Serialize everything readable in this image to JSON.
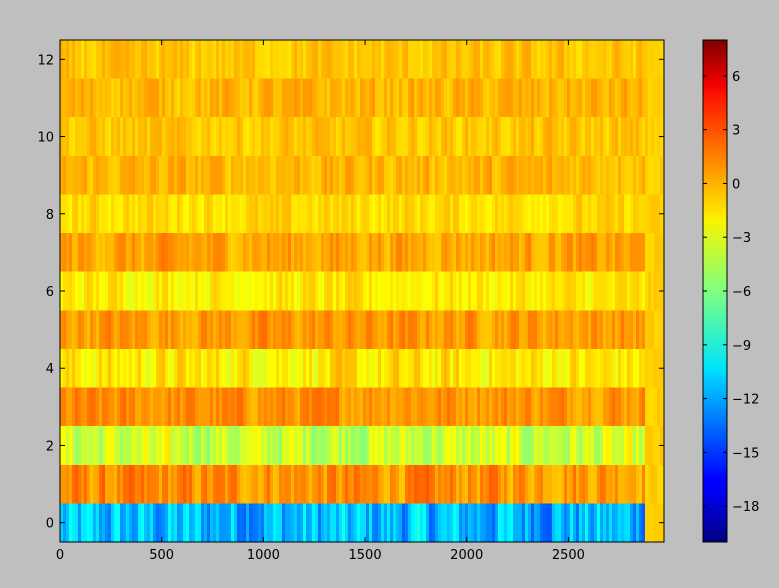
{
  "chart_data": {
    "type": "heatmap",
    "title": "",
    "xlabel": "",
    "ylabel": "",
    "x_range": [
      0,
      2970
    ],
    "y_range": [
      -0.5,
      12.5
    ],
    "colormap": "jet",
    "color_range": [
      -20,
      8
    ],
    "x_ticks": [
      0,
      500,
      1000,
      1500,
      2000,
      2500
    ],
    "y_ticks": [
      0,
      2,
      4,
      6,
      8,
      10,
      12
    ],
    "colorbar_ticks": [
      -18,
      -15,
      -12,
      -9,
      -6,
      -3,
      0,
      3,
      6
    ],
    "x_tick_labels": [
      "0",
      "500",
      "1000",
      "1500",
      "2000",
      "2500"
    ],
    "y_tick_labels": [
      "0",
      "2",
      "4",
      "6",
      "8",
      "10",
      "12"
    ],
    "colorbar_tick_labels": [
      "−18",
      "−15",
      "−12",
      "−9",
      "−6",
      "−3",
      "0",
      "3",
      "6"
    ],
    "rows": [
      {
        "y": 0,
        "mean": -11.5,
        "spread": 3.5
      },
      {
        "y": 1,
        "mean": 0.5,
        "spread": 2.0
      },
      {
        "y": 2,
        "mean": -4.0,
        "spread": 2.5
      },
      {
        "y": 3,
        "mean": 0.5,
        "spread": 1.5
      },
      {
        "y": 4,
        "mean": -2.0,
        "spread": 2.0
      },
      {
        "y": 5,
        "mean": 0.3,
        "spread": 1.5
      },
      {
        "y": 6,
        "mean": -2.0,
        "spread": 1.5
      },
      {
        "y": 7,
        "mean": 0.0,
        "spread": 1.5
      },
      {
        "y": 8,
        "mean": -1.5,
        "spread": 1.2
      },
      {
        "y": 9,
        "mean": -0.5,
        "spread": 1.3
      },
      {
        "y": 10,
        "mean": -1.0,
        "spread": 1.2
      },
      {
        "y": 11,
        "mean": -0.5,
        "spread": 1.3
      },
      {
        "y": 12,
        "mean": -1.0,
        "spread": 1.2
      }
    ],
    "data_extent_x": 2870,
    "right_edge_value": -1.2
  }
}
